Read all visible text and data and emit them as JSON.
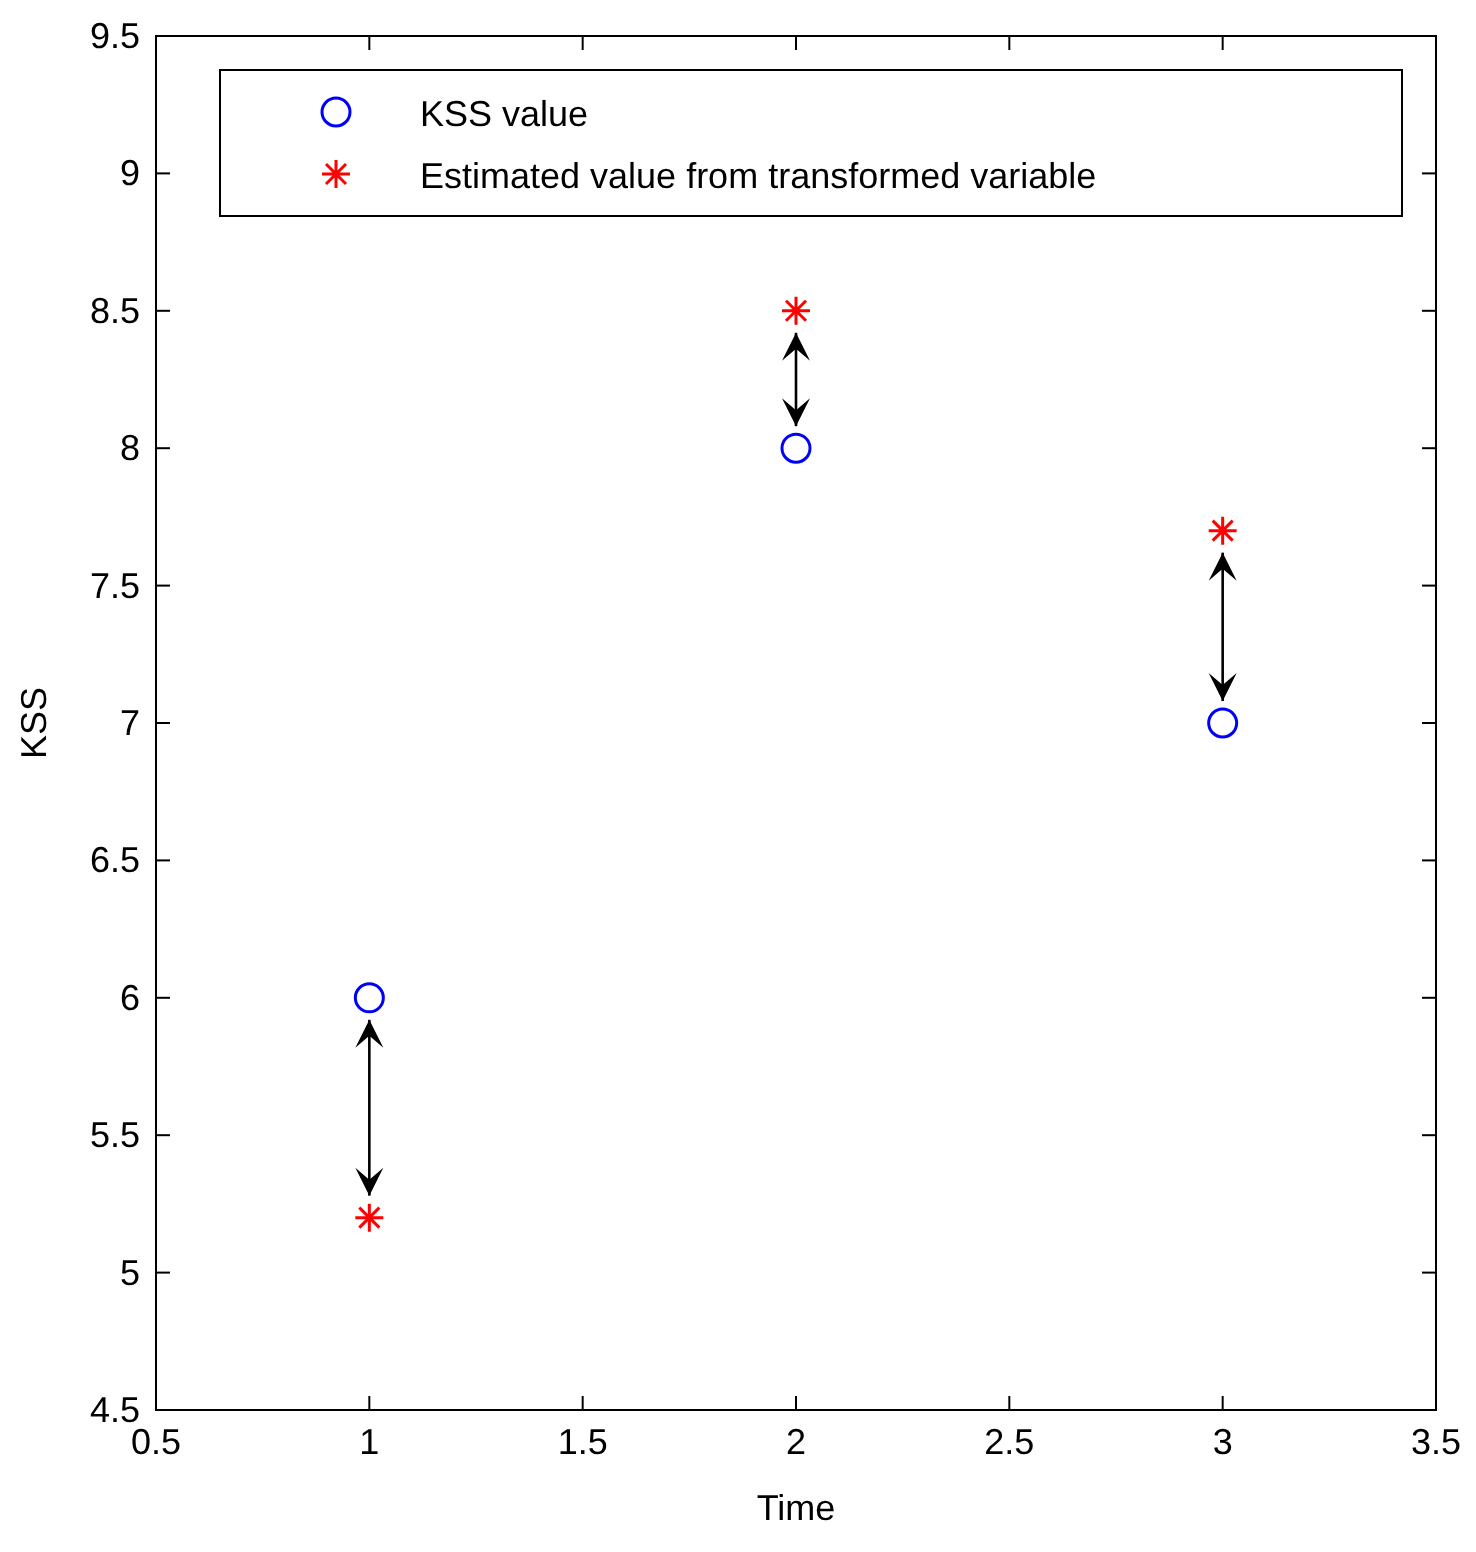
{
  "chart_data": {
    "type": "scatter",
    "xlabel": "Time",
    "ylabel": "KSS",
    "x": [
      1,
      2,
      3
    ],
    "series": [
      {
        "name": "KSS value",
        "color": "#0000ff",
        "marker": "circle",
        "values": [
          6,
          8,
          7
        ]
      },
      {
        "name": "Estimated value from transformed variable",
        "color": "#ff0000",
        "marker": "cross",
        "values": [
          5.2,
          8.5,
          7.7
        ]
      }
    ],
    "xlim": [
      0.5,
      3.5
    ],
    "xticks": [
      0.5,
      1,
      1.5,
      2,
      2.5,
      3,
      3.5
    ],
    "ylim": [
      4.5,
      9.5
    ],
    "yticks": [
      4.5,
      5,
      5.5,
      6,
      6.5,
      7,
      7.5,
      8,
      8.5,
      9,
      9.5
    ],
    "grid": false,
    "legend": "top"
  }
}
